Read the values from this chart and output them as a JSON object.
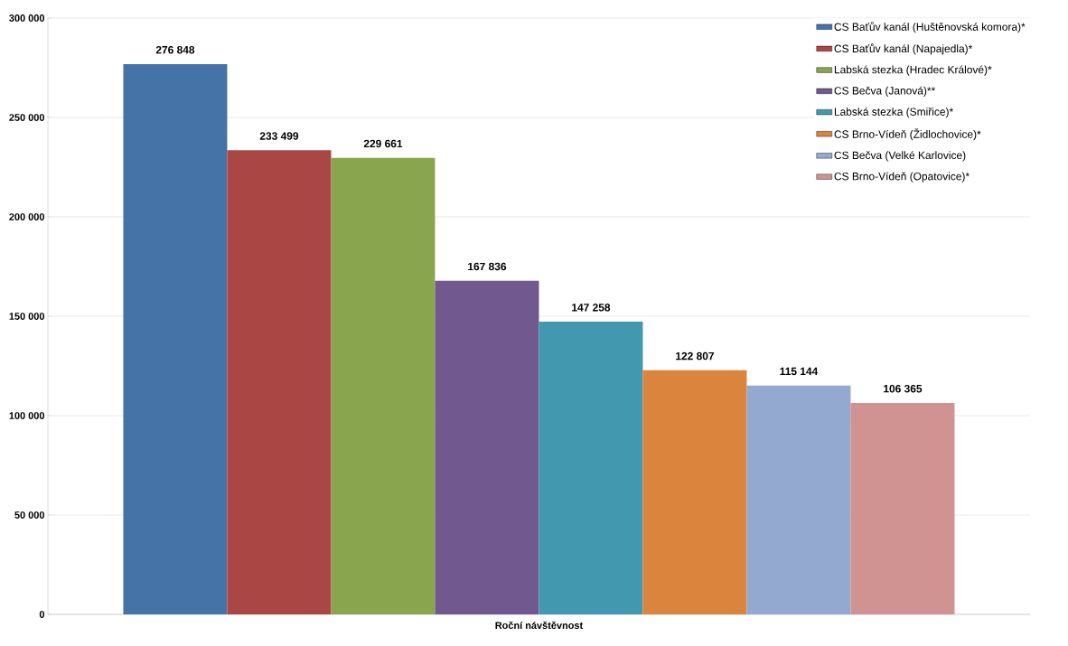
{
  "chart_data": {
    "type": "bar",
    "categories": [
      "Roční návštěvnost"
    ],
    "series": [
      {
        "name": "CS Baťův kanál (Huštěnovská komora)*",
        "color": "#4572a7",
        "values": [
          276848
        ],
        "value_labels": [
          "276 848"
        ]
      },
      {
        "name": "CS Baťův kanál (Napajedla)*",
        "color": "#aa4643",
        "values": [
          233499
        ],
        "value_labels": [
          "233 499"
        ]
      },
      {
        "name": "Labská stezka (Hradec Králové)*",
        "color": "#89a54e",
        "values": [
          229661
        ],
        "value_labels": [
          "229 661"
        ]
      },
      {
        "name": "CS Bečva (Janová)**",
        "color": "#71588f",
        "values": [
          167836
        ],
        "value_labels": [
          "167 836"
        ]
      },
      {
        "name": "Labská stezka (Smiřice)*",
        "color": "#4198af",
        "values": [
          147258
        ],
        "value_labels": [
          "147 258"
        ]
      },
      {
        "name": "CS Brno-Vídeň (Židlochovice)*",
        "color": "#db843d",
        "values": [
          122807
        ],
        "value_labels": [
          "122 807"
        ]
      },
      {
        "name": "CS Bečva (Velké Karlovice)",
        "color": "#93a9cf",
        "values": [
          115144
        ],
        "value_labels": [
          "115 144"
        ]
      },
      {
        "name": "CS Brno-Vídeň (Opatovice)*",
        "color": "#d19392",
        "values": [
          106365
        ],
        "value_labels": [
          "106 365"
        ]
      }
    ],
    "ylim": [
      0,
      300000
    ],
    "yticks": [
      {
        "value": 0,
        "label": "0"
      },
      {
        "value": 50000,
        "label": "50 000"
      },
      {
        "value": 100000,
        "label": "100 000"
      },
      {
        "value": 150000,
        "label": "150 000"
      },
      {
        "value": 200000,
        "label": "200 000"
      },
      {
        "value": 250000,
        "label": "250 000"
      },
      {
        "value": 300000,
        "label": "300 000"
      }
    ],
    "grid": "y",
    "legend": "top right"
  }
}
